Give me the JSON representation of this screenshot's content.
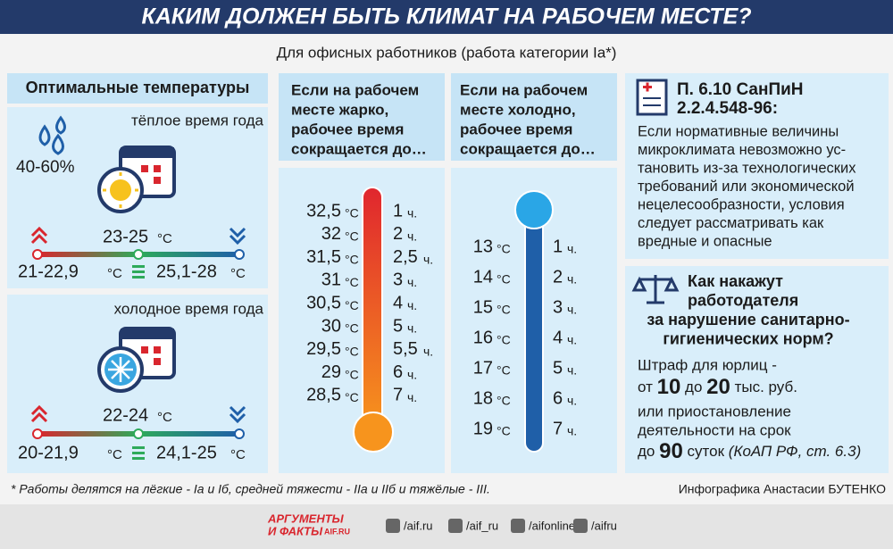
{
  "header": {
    "title": "КАКИМ ДОЛЖЕН БЫТЬ КЛИМАТ НА РАБОЧЕМ МЕСТЕ?",
    "subtitle": "Для офисных работников (работа категории Iа*)"
  },
  "optimal": {
    "title": "Оптимальные температуры",
    "unit": "°C",
    "warm": {
      "label": "тёплое время года",
      "humidity": "40-60%",
      "optimal": "23-25",
      "low": "21-22,9",
      "high": "25,1-28"
    },
    "cold": {
      "label": "холодное время года",
      "optimal": "22-24",
      "low": "20-21,9",
      "high": "24,1-25"
    }
  },
  "hot": {
    "title_lines": [
      "Если на рабочем",
      "месте жарко,",
      "рабочее время",
      "сокращается до…"
    ],
    "unit": "°C",
    "hour_unit": "ч.",
    "rows": [
      [
        "32,5",
        "1"
      ],
      [
        "32",
        "2"
      ],
      [
        "31,5",
        "2,5"
      ],
      [
        "31",
        "3"
      ],
      [
        "30,5",
        "4"
      ],
      [
        "30",
        "5"
      ],
      [
        "29,5",
        "5,5"
      ],
      [
        "29",
        "6"
      ],
      [
        "28,5",
        "7"
      ]
    ]
  },
  "cold": {
    "title_lines": [
      "Если на рабочем",
      "месте холодно,",
      "рабочее время",
      "сокращается до…"
    ],
    "unit": "°C",
    "hour_unit": "ч.",
    "rows": [
      [
        "13",
        "1"
      ],
      [
        "14",
        "2"
      ],
      [
        "15",
        "3"
      ],
      [
        "16",
        "4"
      ],
      [
        "17",
        "5"
      ],
      [
        "18",
        "6"
      ],
      [
        "19",
        "7"
      ]
    ]
  },
  "sanpin": {
    "title_lines": [
      "П. 6.10 СанПиН",
      "2.2.4.548-96:"
    ],
    "text_lines": [
      "Если нормативные величины",
      "микроклимата невозможно ус-",
      "тановить из-за технологических",
      "требований или экономической",
      "нецелесообразности, условия",
      "следует рассматривать как",
      "вредные и опасные"
    ]
  },
  "penalty": {
    "title_lines": [
      "Как накажут",
      "работодателя",
      "за нарушение санитарно-",
      "гигиенических норм?"
    ],
    "fine_intro": "Штраф для юрлиц -",
    "fine_from_word": "от",
    "fine_min": "10",
    "fine_to_word": "до",
    "fine_max": "20",
    "fine_unit": "тыс. руб.",
    "alt_lines": [
      "или приостановление",
      "деятельности на срок"
    ],
    "days_word": "до",
    "days": "90",
    "days_unit": "суток",
    "law": "(КоАП РФ, ст. 6.3)"
  },
  "footer": {
    "note": "* Работы делятся на лёгкие - Iа и Iб, средней тяжести - IIа и IIб и тяжёлые - III.",
    "credit": "Инфографика Анастасии БУТЕНКО",
    "logo_lines": [
      "АРГУМЕНТЫ",
      "И ФАКТЫ"
    ],
    "logo_site": "AIF.RU",
    "social": [
      "/aif.ru",
      "/aif_ru",
      "/aifonline",
      "/aifru"
    ]
  }
}
